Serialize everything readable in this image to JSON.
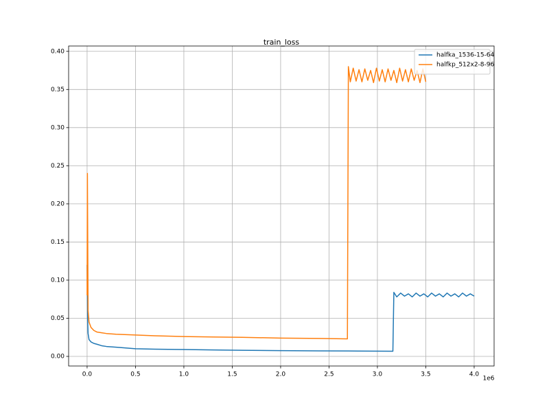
{
  "chart_data": {
    "type": "line",
    "title": "train_loss",
    "x_offset_label": "1e6",
    "xlim": [
      -191000,
      4206000
    ],
    "ylim": [
      -0.0126,
      0.407
    ],
    "xticks": [
      {
        "value": 0,
        "label": "0.0"
      },
      {
        "value": 500000,
        "label": "0.5"
      },
      {
        "value": 1000000,
        "label": "1.0"
      },
      {
        "value": 1500000,
        "label": "1.5"
      },
      {
        "value": 2000000,
        "label": "2.0"
      },
      {
        "value": 2500000,
        "label": "2.5"
      },
      {
        "value": 3000000,
        "label": "3.0"
      },
      {
        "value": 3500000,
        "label": "3.5"
      },
      {
        "value": 4000000,
        "label": "4.0"
      }
    ],
    "yticks": [
      {
        "value": 0,
        "label": "0.00"
      },
      {
        "value": 0.05,
        "label": "0.05"
      },
      {
        "value": 0.1,
        "label": "0.10"
      },
      {
        "value": 0.15,
        "label": "0.15"
      },
      {
        "value": 0.2,
        "label": "0.20"
      },
      {
        "value": 0.25,
        "label": "0.25"
      },
      {
        "value": 0.3,
        "label": "0.30"
      },
      {
        "value": 0.35,
        "label": "0.35"
      },
      {
        "value": 0.4,
        "label": "0.40"
      }
    ],
    "grid": true,
    "legend": "upper right",
    "series": [
      {
        "name": "halfka_1536-15-64",
        "color": "#1f77b4",
        "x": [
          0,
          5000,
          10000,
          20000,
          40000,
          70000,
          100000,
          150000,
          200000,
          300000,
          400000,
          500000,
          700000,
          1000000,
          1300000,
          1600000,
          2000000,
          2400000,
          2800000,
          3160000,
          3170000,
          3200000,
          3240000,
          3280000,
          3320000,
          3360000,
          3400000,
          3440000,
          3480000,
          3520000,
          3560000,
          3600000,
          3640000,
          3680000,
          3720000,
          3760000,
          3800000,
          3840000,
          3880000,
          3920000,
          3960000,
          4000000
        ],
        "values": [
          0.12,
          0.05,
          0.03,
          0.022,
          0.019,
          0.017,
          0.016,
          0.014,
          0.013,
          0.012,
          0.011,
          0.01,
          0.0095,
          0.009,
          0.0085,
          0.008,
          0.0075,
          0.0072,
          0.007,
          0.0068,
          0.084,
          0.078,
          0.083,
          0.079,
          0.082,
          0.078,
          0.083,
          0.079,
          0.082,
          0.078,
          0.083,
          0.079,
          0.082,
          0.078,
          0.083,
          0.079,
          0.082,
          0.078,
          0.083,
          0.079,
          0.082,
          0.079
        ]
      },
      {
        "name": "halfkp_512x2-8-96",
        "color": "#ff7f0e",
        "x": [
          0,
          3000,
          10000,
          20000,
          40000,
          70000,
          100000,
          150000,
          200000,
          300000,
          500000,
          700000,
          1000000,
          1300000,
          1600000,
          2000000,
          2400000,
          2690000,
          2700000,
          2720000,
          2750000,
          2780000,
          2810000,
          2840000,
          2870000,
          2900000,
          2930000,
          2960000,
          2990000,
          3020000,
          3050000,
          3080000,
          3110000,
          3140000,
          3170000,
          3200000,
          3230000,
          3260000,
          3290000,
          3320000,
          3350000,
          3380000,
          3410000,
          3440000,
          3470000,
          3500000
        ],
        "values": [
          0.08,
          0.24,
          0.06,
          0.045,
          0.038,
          0.034,
          0.032,
          0.031,
          0.03,
          0.029,
          0.028,
          0.027,
          0.026,
          0.0255,
          0.025,
          0.024,
          0.0235,
          0.023,
          0.38,
          0.36,
          0.378,
          0.361,
          0.376,
          0.36,
          0.377,
          0.362,
          0.375,
          0.359,
          0.378,
          0.361,
          0.376,
          0.36,
          0.377,
          0.362,
          0.375,
          0.359,
          0.378,
          0.361,
          0.376,
          0.36,
          0.377,
          0.362,
          0.375,
          0.359,
          0.377,
          0.36
        ]
      }
    ]
  }
}
